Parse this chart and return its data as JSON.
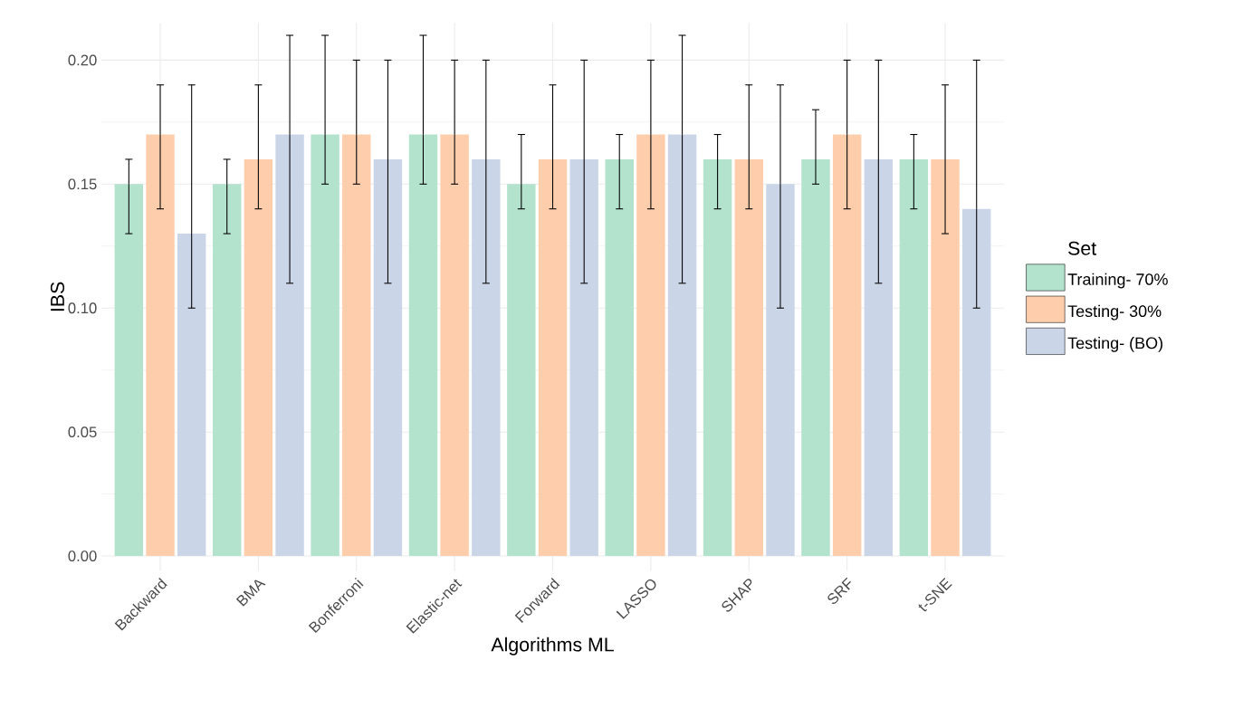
{
  "chart_data": {
    "type": "bar",
    "xlabel": "Algorithms ML",
    "ylabel": "IBS",
    "legend_title": "Set",
    "legend": "right",
    "grid": true,
    "categories": [
      "Backward",
      "BMA",
      "Bonferroni",
      "Elastic-net",
      "Forward",
      "LASSO",
      "SHAP",
      "SRF",
      "t-SNE"
    ],
    "ylim": [
      -0.006,
      0.215
    ],
    "yticks": [
      {
        "value": 0,
        "label": "0.00"
      },
      {
        "value": 0.05,
        "label": "0.05"
      },
      {
        "value": 0.1,
        "label": "0.10"
      },
      {
        "value": 0.15,
        "label": "0.15"
      },
      {
        "value": 0.2,
        "label": "0.20"
      }
    ],
    "series": [
      {
        "name": "Training- 70%",
        "color": "#b3e2cd",
        "values": [
          0.15,
          0.15,
          0.17,
          0.17,
          0.15,
          0.16,
          0.16,
          0.16,
          0.16
        ],
        "errors": [
          [
            0.13,
            0.16
          ],
          [
            0.13,
            0.16
          ],
          [
            0.15,
            0.21
          ],
          [
            0.15,
            0.21
          ],
          [
            0.14,
            0.17
          ],
          [
            0.14,
            0.17
          ],
          [
            0.14,
            0.17
          ],
          [
            0.15,
            0.18
          ],
          [
            0.14,
            0.17
          ]
        ]
      },
      {
        "name": "Testing- 30%",
        "color": "#fdcdac",
        "values": [
          0.17,
          0.16,
          0.17,
          0.17,
          0.16,
          0.17,
          0.16,
          0.17,
          0.16
        ],
        "errors": [
          [
            0.14,
            0.19
          ],
          [
            0.14,
            0.19
          ],
          [
            0.15,
            0.2
          ],
          [
            0.15,
            0.2
          ],
          [
            0.14,
            0.19
          ],
          [
            0.14,
            0.2
          ],
          [
            0.14,
            0.19
          ],
          [
            0.14,
            0.2
          ],
          [
            0.13,
            0.19
          ]
        ]
      },
      {
        "name": "Testing- (BO)",
        "color": "#cbd5e8",
        "values": [
          0.13,
          0.17,
          0.16,
          0.16,
          0.16,
          0.17,
          0.15,
          0.16,
          0.14
        ],
        "errors": [
          [
            0.1,
            0.19
          ],
          [
            0.11,
            0.21
          ],
          [
            0.11,
            0.2
          ],
          [
            0.11,
            0.2
          ],
          [
            0.11,
            0.2
          ],
          [
            0.11,
            0.21
          ],
          [
            0.1,
            0.19
          ],
          [
            0.11,
            0.2
          ],
          [
            0.1,
            0.2
          ]
        ]
      }
    ]
  }
}
